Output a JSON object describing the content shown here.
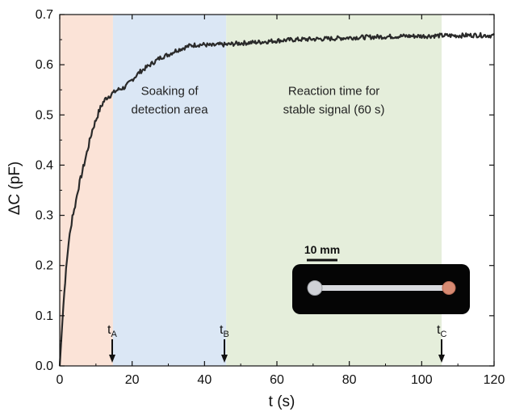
{
  "chart_data": {
    "type": "line",
    "title": "",
    "xlabel": "t (s)",
    "ylabel": "ΔC (pF)",
    "xlim": [
      0,
      120
    ],
    "ylim": [
      0.0,
      0.7
    ],
    "xticks": [
      0,
      20,
      40,
      60,
      80,
      100,
      120
    ],
    "yticks": [
      0.0,
      0.1,
      0.2,
      0.3,
      0.4,
      0.5,
      0.6,
      0.7
    ],
    "ytick_labels": [
      "0.0",
      "0.1",
      "0.2",
      "0.3",
      "0.4",
      "0.5",
      "0.6",
      "0.7"
    ],
    "grid": false,
    "regions": [
      {
        "x0": 0,
        "x1": 14.7,
        "color": "#fbe3d7"
      },
      {
        "x0": 14.7,
        "x1": 46,
        "color": "#dbe7f5",
        "label_lines": [
          "Soaking of",
          "detection area"
        ],
        "label_y": 0.54
      },
      {
        "x0": 46,
        "x1": 105.5,
        "color": "#e5eedb",
        "label_lines": [
          "Reaction time for",
          "stable signal (60 s)"
        ],
        "label_y": 0.54
      }
    ],
    "markers": [
      {
        "x": 14.5,
        "label": "t",
        "sub": "A"
      },
      {
        "x": 45.5,
        "label": "t",
        "sub": "B"
      },
      {
        "x": 105.5,
        "label": "t",
        "sub": "C"
      }
    ],
    "series": [
      {
        "color": "#2a2a2a",
        "x": [
          0,
          0.5,
          1,
          1.5,
          2,
          2.5,
          3,
          3.5,
          4,
          5,
          6,
          7,
          8,
          9,
          10,
          11,
          12,
          13,
          14,
          15,
          16,
          18,
          20,
          22,
          24,
          26,
          28,
          30,
          32,
          34,
          36,
          38,
          40,
          42,
          44,
          46,
          50,
          55,
          60,
          65,
          70,
          75,
          80,
          85,
          90,
          95,
          100,
          105,
          110,
          115,
          120
        ],
        "y": [
          0.0,
          0.06,
          0.12,
          0.17,
          0.21,
          0.25,
          0.27,
          0.3,
          0.31,
          0.35,
          0.38,
          0.41,
          0.44,
          0.47,
          0.49,
          0.51,
          0.525,
          0.535,
          0.54,
          0.545,
          0.55,
          0.555,
          0.57,
          0.585,
          0.595,
          0.605,
          0.615,
          0.62,
          0.628,
          0.633,
          0.638,
          0.64,
          0.64,
          0.638,
          0.64,
          0.64,
          0.643,
          0.645,
          0.648,
          0.65,
          0.651,
          0.652,
          0.654,
          0.655,
          0.656,
          0.657,
          0.657,
          0.658,
          0.658,
          0.659,
          0.658
        ]
      }
    ]
  },
  "inset": {
    "scale_label": "10 mm"
  }
}
